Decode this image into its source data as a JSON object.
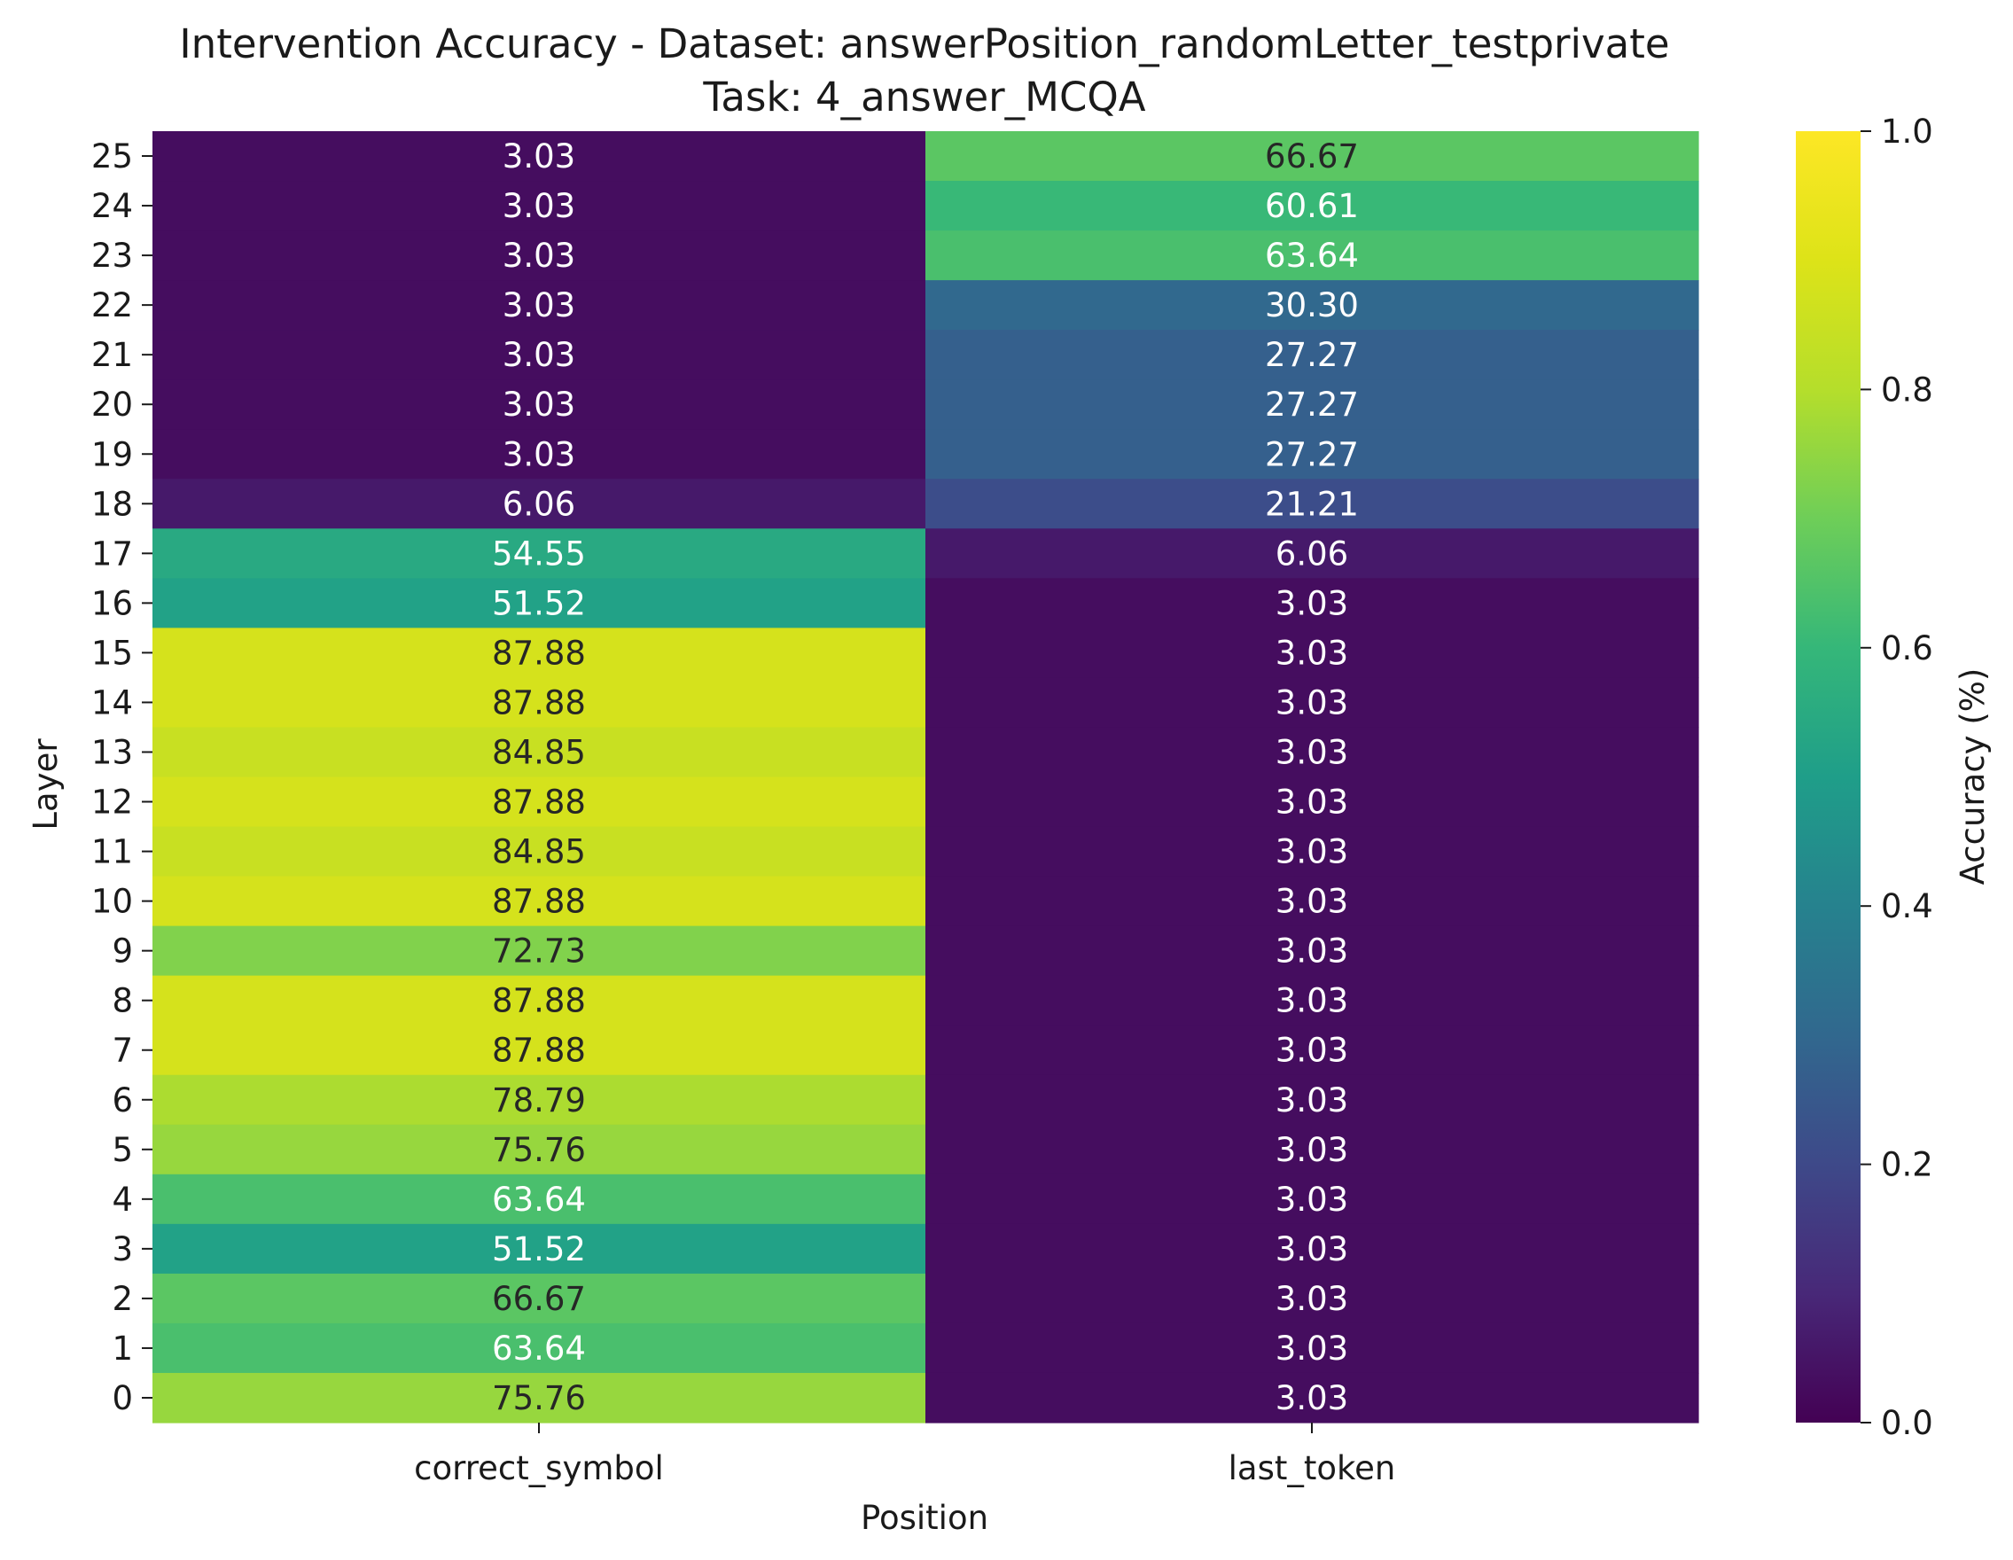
{
  "chart_data": {
    "type": "heatmap",
    "title_line1": "Intervention Accuracy - Dataset: answerPosition_randomLetter_testprivate",
    "title_line2": "Task: 4_answer_MCQA",
    "xlabel": "Position",
    "ylabel": "Layer",
    "x_categories": [
      "correct_symbol",
      "last_token"
    ],
    "y_categories": [
      "25",
      "24",
      "23",
      "22",
      "21",
      "20",
      "19",
      "18",
      "17",
      "16",
      "15",
      "14",
      "13",
      "12",
      "11",
      "10",
      "9",
      "8",
      "7",
      "6",
      "5",
      "4",
      "3",
      "2",
      "1",
      "0"
    ],
    "series": [
      {
        "name": "correct_symbol",
        "values": [
          3.03,
          3.03,
          3.03,
          3.03,
          3.03,
          3.03,
          3.03,
          6.06,
          54.55,
          51.52,
          87.88,
          87.88,
          84.85,
          87.88,
          84.85,
          87.88,
          72.73,
          87.88,
          87.88,
          78.79,
          75.76,
          63.64,
          51.52,
          66.67,
          63.64,
          75.76
        ],
        "labels": [
          "3.03",
          "3.03",
          "3.03",
          "3.03",
          "3.03",
          "3.03",
          "3.03",
          "6.06",
          "54.55",
          "51.52",
          "87.88",
          "87.88",
          "84.85",
          "87.88",
          "84.85",
          "87.88",
          "72.73",
          "87.88",
          "87.88",
          "78.79",
          "75.76",
          "63.64",
          "51.52",
          "66.67",
          "63.64",
          "75.76"
        ]
      },
      {
        "name": "last_token",
        "values": [
          66.67,
          60.61,
          63.64,
          30.3,
          27.27,
          27.27,
          27.27,
          21.21,
          6.06,
          3.03,
          3.03,
          3.03,
          3.03,
          3.03,
          3.03,
          3.03,
          3.03,
          3.03,
          3.03,
          3.03,
          3.03,
          3.03,
          3.03,
          3.03,
          3.03,
          3.03
        ],
        "labels": [
          "66.67",
          "60.61",
          "63.64",
          "30.30",
          "27.27",
          "27.27",
          "27.27",
          "21.21",
          "6.06",
          "3.03",
          "3.03",
          "3.03",
          "3.03",
          "3.03",
          "3.03",
          "3.03",
          "3.03",
          "3.03",
          "3.03",
          "3.03",
          "3.03",
          "3.03",
          "3.03",
          "3.03",
          "3.03",
          "3.03"
        ]
      }
    ],
    "colormap": "viridis",
    "colorbar": {
      "label": "Accuracy (%)",
      "range": [
        0.0,
        1.0
      ],
      "ticks": [
        "0.0",
        "0.2",
        "0.4",
        "0.6",
        "0.8",
        "1.0"
      ]
    },
    "grid": false
  }
}
